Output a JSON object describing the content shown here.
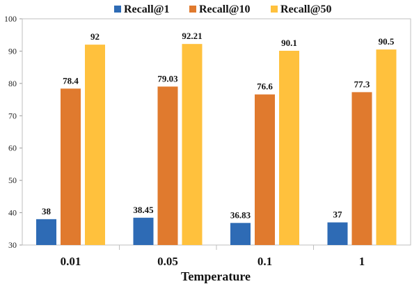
{
  "chart_data": {
    "type": "bar",
    "categories": [
      "0.01",
      "0.05",
      "0.1",
      "1"
    ],
    "series": [
      {
        "name": "Recall@1",
        "values": [
          38,
          38.45,
          36.83,
          37
        ],
        "labels": [
          "38",
          "38.45",
          "36.83",
          "37"
        ],
        "color": "#2E6BB5"
      },
      {
        "name": "Recall@10",
        "values": [
          78.4,
          79.03,
          76.6,
          77.3
        ],
        "labels": [
          "78.4",
          "79.03",
          "76.6",
          "77.3"
        ],
        "color": "#E07A2E"
      },
      {
        "name": "Recall@50",
        "values": [
          92,
          92.21,
          90.1,
          90.5
        ],
        "labels": [
          "92",
          "92.21",
          "90.1",
          "90.5"
        ],
        "color": "#FFC13D"
      }
    ],
    "xlabel": "Temperature",
    "ylabel": "",
    "ylim": [
      30,
      100
    ],
    "yticks": [
      30,
      40,
      50,
      60,
      70,
      80,
      90,
      100
    ],
    "legend": "top",
    "grid": false
  }
}
